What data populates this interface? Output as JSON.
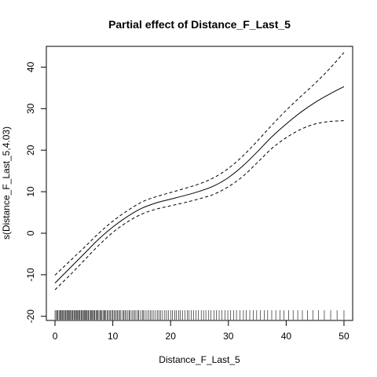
{
  "chart_data": {
    "type": "line",
    "title": "Partial effect of Distance_F_Last_5",
    "xlabel": "Distance_F_Last_5",
    "ylabel": "s(Distance_F_Last_5,4.03)",
    "xlim": [
      -1.5,
      51.5
    ],
    "ylim": [
      -21,
      45
    ],
    "x_ticks": [
      0,
      10,
      20,
      30,
      40,
      50
    ],
    "y_ticks": [
      -20,
      -10,
      0,
      10,
      20,
      30,
      40
    ],
    "grid": false,
    "legend": "none",
    "series": [
      {
        "style": "solid",
        "x": [
          0,
          2.5,
          5,
          7.5,
          10,
          12.5,
          15,
          17.5,
          20,
          22.5,
          25,
          27.5,
          30,
          32.5,
          35,
          37.5,
          40,
          42.5,
          45,
          47.5,
          50
        ],
        "y": [
          -12,
          -8.5,
          -5,
          -1.5,
          1.5,
          4,
          6,
          7.3,
          8.2,
          9.1,
          10.1,
          11.4,
          13.4,
          16.2,
          19.6,
          23.2,
          26.3,
          29.1,
          31.5,
          33.5,
          35.3
        ]
      },
      {
        "style": "dashed",
        "x": [
          0,
          2.5,
          5,
          7.5,
          10,
          12.5,
          15,
          17.5,
          20,
          22.5,
          25,
          27.5,
          30,
          32.5,
          35,
          37.5,
          40,
          42.5,
          45,
          47.5,
          50
        ],
        "y": [
          -10.1,
          -6.8,
          -3.5,
          -0.1,
          2.9,
          5.4,
          7.5,
          8.8,
          9.8,
          10.8,
          11.9,
          13.4,
          15.6,
          18.6,
          22.2,
          26,
          29.6,
          32.9,
          36.1,
          39.6,
          43.5
        ]
      },
      {
        "style": "dashed",
        "x": [
          0,
          2.5,
          5,
          7.5,
          10,
          12.5,
          15,
          17.5,
          20,
          22.5,
          25,
          27.5,
          30,
          32.5,
          35,
          37.5,
          40,
          42.5,
          45,
          47.5,
          50
        ],
        "y": [
          -13.6,
          -10.2,
          -6.6,
          -3.0,
          0.2,
          2.7,
          4.6,
          5.8,
          6.6,
          7.4,
          8.3,
          9.4,
          11.2,
          13.7,
          17.0,
          20.4,
          23.0,
          25.0,
          26.3,
          26.9,
          27.1
        ]
      }
    ],
    "rug": [
      0,
      0.2,
      0.4,
      0.5,
      0.7,
      0.9,
      1.0,
      1.2,
      1.3,
      1.5,
      1.6,
      1.8,
      1.9,
      2.1,
      2.2,
      2.4,
      2.5,
      2.7,
      2.8,
      3.0,
      3.1,
      3.3,
      3.4,
      3.6,
      3.7,
      3.9,
      4.0,
      4.2,
      4.3,
      4.5,
      4.6,
      4.8,
      4.9,
      5.1,
      5.2,
      5.4,
      5.5,
      5.7,
      5.8,
      6.0,
      6.2,
      6.3,
      6.5,
      6.6,
      6.8,
      6.9,
      7.1,
      7.3,
      7.4,
      7.6,
      7.8,
      7.9,
      8.1,
      8.3,
      8.5,
      8.6,
      8.8,
      9.0,
      9.2,
      9.4,
      9.6,
      9.8,
      10.0,
      10.2,
      10.4,
      10.6,
      10.8,
      11.0,
      11.2,
      11.4,
      11.7,
      11.9,
      12.1,
      12.3,
      12.6,
      12.8,
      13.0,
      13.3,
      13.5,
      13.8,
      14.0,
      14.3,
      14.5,
      14.8,
      15.1,
      15.3,
      15.6,
      15.9,
      16.2,
      16.5,
      16.8,
      17.1,
      17.4,
      17.7,
      18.0,
      18.3,
      18.6,
      19.0,
      19.3,
      19.6,
      20.0,
      20.3,
      20.7,
      21.0,
      21.4,
      21.7,
      22.1,
      22.5,
      22.9,
      23.2,
      23.6,
      24.0,
      24.4,
      24.8,
      25.3,
      25.7,
      26.1,
      26.6,
      27.0,
      27.5,
      27.9,
      28.4,
      28.9,
      29.4,
      29.9,
      30.4,
      30.9,
      31.4,
      32.0,
      32.6,
      33.1,
      33.7,
      34.3,
      34.9,
      35.5,
      36.2,
      36.8,
      37.5,
      38.2,
      38.9,
      39.6,
      40.4,
      41.2,
      42.0,
      42.8,
      43.7,
      44.6,
      45.6,
      46.6,
      47.7,
      48.8,
      50.0
    ]
  }
}
